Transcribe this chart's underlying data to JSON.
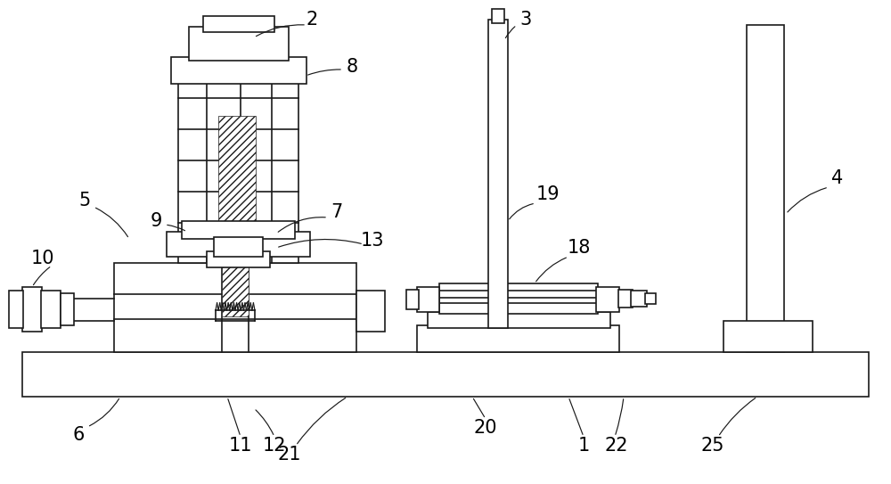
{
  "bg_color": "#ffffff",
  "lc": "#1a1a1a",
  "lw": 1.2,
  "fig_w": 10.0,
  "fig_h": 5.43
}
